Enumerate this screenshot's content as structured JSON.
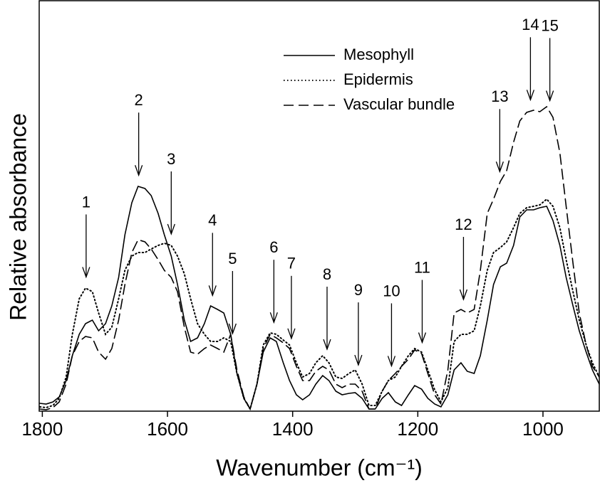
{
  "chart_data": {
    "type": "line",
    "x_label": "Wavenumber (cm⁻¹)",
    "y_label": "Relative absorbance",
    "xlim": [
      1805,
      910
    ],
    "xticks": [
      1800,
      1600,
      1400,
      1200,
      1000
    ],
    "ylim": [
      0,
      577
    ],
    "legend": "top-center",
    "x": [
      1804,
      1794,
      1783,
      1773,
      1762,
      1752,
      1741,
      1731,
      1720,
      1710,
      1699,
      1689,
      1678,
      1668,
      1657,
      1647,
      1636,
      1626,
      1615,
      1605,
      1594,
      1584,
      1573,
      1563,
      1552,
      1541,
      1531,
      1520,
      1510,
      1499,
      1489,
      1478,
      1468,
      1457,
      1447,
      1436,
      1426,
      1415,
      1405,
      1394,
      1384,
      1373,
      1363,
      1352,
      1342,
      1331,
      1321,
      1310,
      1300,
      1289,
      1278,
      1268,
      1257,
      1247,
      1236,
      1226,
      1215,
      1205,
      1194,
      1184,
      1173,
      1163,
      1152,
      1142,
      1131,
      1121,
      1110,
      1100,
      1089,
      1079,
      1068,
      1058,
      1047,
      1037,
      1026,
      1015,
      1005,
      994,
      984,
      973,
      963,
      952,
      942,
      931,
      921,
      910
    ],
    "series": [
      {
        "name": "Mesophyll",
        "color": "#000000",
        "line_style": "solid",
        "values": [
          11,
          10,
          13,
          20,
          43,
          78,
          108,
          123,
          128,
          113,
          123,
          148,
          188,
          248,
          293,
          316,
          313,
          303,
          278,
          248,
          218,
          178,
          128,
          98,
          103,
          123,
          148,
          143,
          138,
          108,
          53,
          18,
          3,
          38,
          83,
          103,
          98,
          68,
          43,
          23,
          16,
          23,
          38,
          50,
          43,
          28,
          23,
          25,
          26,
          18,
          3,
          3,
          18,
          26,
          13,
          8,
          23,
          36,
          31,
          18,
          10,
          6,
          23,
          58,
          68,
          56,
          53,
          78,
          128,
          178,
          203,
          208,
          233,
          273,
          283,
          283,
          286,
          288,
          268,
          233,
          188,
          148,
          113,
          83,
          58,
          38
        ]
      },
      {
        "name": "Epidermis",
        "color": "#000000",
        "line_style": "dotted",
        "values": [
          6,
          5,
          8,
          18,
          48,
          108,
          158,
          173,
          168,
          138,
          108,
          118,
          158,
          198,
          218,
          223,
          223,
          228,
          233,
          236,
          233,
          218,
          193,
          158,
          123,
          108,
          98,
          98,
          103,
          98,
          53,
          18,
          3,
          38,
          93,
          110,
          108,
          100,
          93,
          68,
          48,
          53,
          68,
          78,
          68,
          48,
          46,
          53,
          58,
          38,
          8,
          8,
          28,
          43,
          48,
          63,
          78,
          88,
          83,
          58,
          30,
          13,
          33,
          98,
          108,
          108,
          113,
          148,
          198,
          223,
          230,
          238,
          258,
          278,
          286,
          288,
          290,
          298,
          288,
          258,
          213,
          168,
          128,
          93,
          68,
          48
        ]
      },
      {
        "name": "Vascular bundle",
        "color": "#000000",
        "line_style": "dashed",
        "values": [
          3,
          2,
          5,
          13,
          38,
          78,
          98,
          105,
          103,
          83,
          73,
          88,
          128,
          178,
          223,
          241,
          238,
          228,
          213,
          198,
          188,
          168,
          118,
          83,
          80,
          88,
          93,
          88,
          83,
          108,
          58,
          20,
          3,
          38,
          88,
          108,
          103,
          96,
          88,
          63,
          43,
          43,
          56,
          63,
          58,
          38,
          33,
          38,
          38,
          28,
          3,
          3,
          28,
          43,
          53,
          63,
          73,
          86,
          81,
          53,
          23,
          10,
          58,
          138,
          143,
          138,
          143,
          198,
          278,
          298,
          323,
          338,
          378,
          408,
          420,
          423,
          421,
          428,
          413,
          363,
          288,
          208,
          138,
          93,
          63,
          48
        ]
      }
    ],
    "annotations": [
      {
        "label": "1",
        "x": 1730
      },
      {
        "label": "2",
        "x": 1646
      },
      {
        "label": "3",
        "x": 1594
      },
      {
        "label": "4",
        "x": 1528
      },
      {
        "label": "5",
        "x": 1496
      },
      {
        "label": "6",
        "x": 1430
      },
      {
        "label": "7",
        "x": 1402
      },
      {
        "label": "8",
        "x": 1345
      },
      {
        "label": "9",
        "x": 1295
      },
      {
        "label": "10",
        "x": 1242
      },
      {
        "label": "11",
        "x": 1193
      },
      {
        "label": "12",
        "x": 1127
      },
      {
        "label": "13",
        "x": 1069
      },
      {
        "label": "14",
        "x": 1020
      },
      {
        "label": "15",
        "x": 989
      }
    ]
  }
}
